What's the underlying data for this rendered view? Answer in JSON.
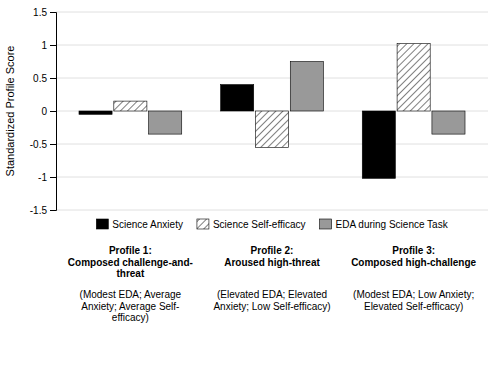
{
  "chart_data": {
    "type": "bar",
    "y_label": "Standardized Profile Score",
    "categories": [
      "Profile 1:\nComposed challenge-and-\nthreat",
      "Profile 2:\nAroused high-threat",
      "Profile 3:\nComposed high-challenge"
    ],
    "annotations": [
      "(Modest EDA; Average\nAnxiety; Average Self-\nefficacy)",
      "(Elevated EDA; Elevated\nAnxiety; Low Self-efficacy)",
      "(Modest EDA; Low Anxiety;\nElevated Self-efficacy)"
    ],
    "series": [
      {
        "name": "Science Anxiety",
        "color": "#000000",
        "values": [
          -0.05,
          0.4,
          -1.02
        ]
      },
      {
        "name": "Science Self-efficacy",
        "color": "#ffffff",
        "values": [
          0.15,
          -0.55,
          1.02
        ]
      },
      {
        "name": "EDA during Science Task",
        "color": "#999999",
        "values": [
          -0.35,
          0.75,
          -0.35
        ]
      }
    ],
    "ylim": [
      -1.5,
      1.5
    ],
    "yticks": [
      -1.5,
      -1,
      -0.5,
      0,
      0.5,
      1,
      1.5
    ],
    "grid": true,
    "legend": "bottom"
  }
}
